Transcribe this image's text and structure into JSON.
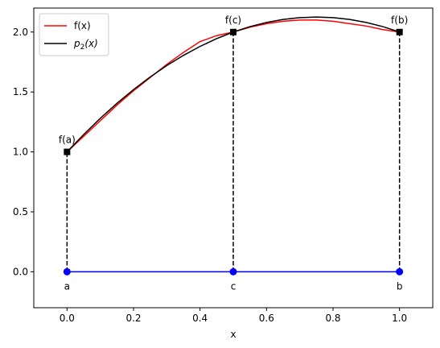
{
  "chart_data": {
    "type": "line",
    "xlabel": "x",
    "ylabel": "",
    "xlim": [
      -0.1,
      1.1
    ],
    "ylim": [
      -0.3,
      2.2
    ],
    "xticks": [
      0.0,
      0.2,
      0.4,
      0.6,
      0.8,
      1.0
    ],
    "xtick_labels": [
      "0.0",
      "0.2",
      "0.4",
      "0.6",
      "0.8",
      "1.0"
    ],
    "yticks": [
      0.0,
      0.5,
      1.0,
      1.5,
      2.0
    ],
    "ytick_labels": [
      "0.0",
      "0.5",
      "1.0",
      "1.5",
      "2.0"
    ],
    "grid": false,
    "legend": {
      "placement": "top-left",
      "entries": [
        {
          "label": "f(x)",
          "color": "#ff0000"
        },
        {
          "label_main": "p",
          "label_sub": "2",
          "label_rest": "(x)",
          "color": "#000000"
        }
      ]
    },
    "series": [
      {
        "name": "f(x)",
        "color": "#ff0000",
        "x": [
          0.0,
          0.05,
          0.1,
          0.15,
          0.2,
          0.25,
          0.3,
          0.35,
          0.4,
          0.45,
          0.5,
          0.55,
          0.6,
          0.65,
          0.7,
          0.75,
          0.8,
          0.85,
          0.9,
          0.95,
          1.0
        ],
        "y": [
          1.0,
          1.13,
          1.26,
          1.39,
          1.51,
          1.62,
          1.73,
          1.83,
          1.92,
          1.97,
          2.0,
          2.04,
          2.07,
          2.09,
          2.1,
          2.1,
          2.09,
          2.07,
          2.05,
          2.02,
          2.0
        ]
      },
      {
        "name": "p2(x)",
        "color": "#000000",
        "x": [
          0.0,
          0.05,
          0.1,
          0.15,
          0.2,
          0.25,
          0.3,
          0.35,
          0.4,
          0.45,
          0.5,
          0.55,
          0.6,
          0.65,
          0.7,
          0.75,
          0.8,
          0.85,
          0.9,
          0.95,
          1.0
        ],
        "y": [
          1.0,
          1.145,
          1.28,
          1.405,
          1.52,
          1.625,
          1.72,
          1.805,
          1.88,
          1.945,
          2.0,
          2.045,
          2.08,
          2.105,
          2.12,
          2.125,
          2.12,
          2.105,
          2.08,
          2.045,
          2.0
        ]
      }
    ],
    "nodes": [
      {
        "x": 0.0,
        "y": 1.0,
        "label": "f(a)",
        "base_label": "a"
      },
      {
        "x": 0.5,
        "y": 2.0,
        "label": "f(c)",
        "base_label": "c"
      },
      {
        "x": 1.0,
        "y": 2.0,
        "label": "f(b)",
        "base_label": "b"
      }
    ],
    "base_line": {
      "y": 0.0,
      "color": "#0000ff"
    },
    "node_marker_color": "#000000",
    "dashed_color": "#000000"
  }
}
